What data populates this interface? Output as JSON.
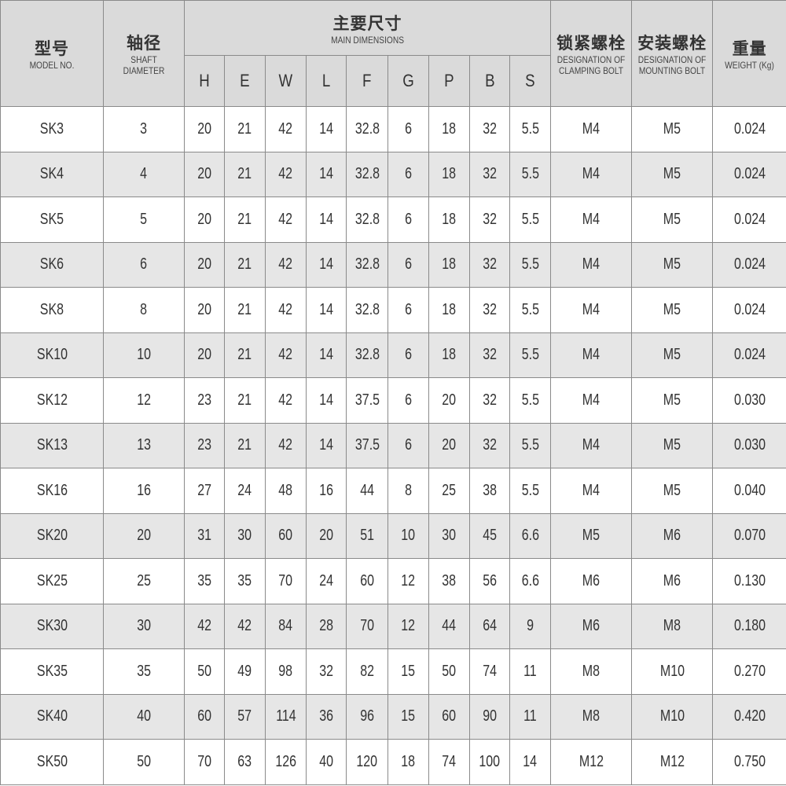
{
  "header": {
    "model": {
      "zh": "型号",
      "en": "MODEL NO."
    },
    "shaft": {
      "zh": "轴径",
      "en": "SHAFT DIAMETER"
    },
    "main": {
      "zh": "主要尺寸",
      "en": "MAIN DIMENSIONS"
    },
    "dims": [
      "H",
      "E",
      "W",
      "L",
      "F",
      "G",
      "P",
      "B",
      "S"
    ],
    "clamping": {
      "zh": "锁紧螺栓",
      "en": "DESIGNATION OF CLAMPING BOLT"
    },
    "mounting": {
      "zh": "安装螺栓",
      "en": "DESIGNATION OF MOUNTING BOLT"
    },
    "weight": {
      "zh": "重量",
      "en": "WEIGHT (Kg)"
    }
  },
  "rows": [
    [
      "SK3",
      "3",
      "20",
      "21",
      "42",
      "14",
      "32.8",
      "6",
      "18",
      "32",
      "5.5",
      "M4",
      "M5",
      "0.024"
    ],
    [
      "SK4",
      "4",
      "20",
      "21",
      "42",
      "14",
      "32.8",
      "6",
      "18",
      "32",
      "5.5",
      "M4",
      "M5",
      "0.024"
    ],
    [
      "SK5",
      "5",
      "20",
      "21",
      "42",
      "14",
      "32.8",
      "6",
      "18",
      "32",
      "5.5",
      "M4",
      "M5",
      "0.024"
    ],
    [
      "SK6",
      "6",
      "20",
      "21",
      "42",
      "14",
      "32.8",
      "6",
      "18",
      "32",
      "5.5",
      "M4",
      "M5",
      "0.024"
    ],
    [
      "SK8",
      "8",
      "20",
      "21",
      "42",
      "14",
      "32.8",
      "6",
      "18",
      "32",
      "5.5",
      "M4",
      "M5",
      "0.024"
    ],
    [
      "SK10",
      "10",
      "20",
      "21",
      "42",
      "14",
      "32.8",
      "6",
      "18",
      "32",
      "5.5",
      "M4",
      "M5",
      "0.024"
    ],
    [
      "SK12",
      "12",
      "23",
      "21",
      "42",
      "14",
      "37.5",
      "6",
      "20",
      "32",
      "5.5",
      "M4",
      "M5",
      "0.030"
    ],
    [
      "SK13",
      "13",
      "23",
      "21",
      "42",
      "14",
      "37.5",
      "6",
      "20",
      "32",
      "5.5",
      "M4",
      "M5",
      "0.030"
    ],
    [
      "SK16",
      "16",
      "27",
      "24",
      "48",
      "16",
      "44",
      "8",
      "25",
      "38",
      "5.5",
      "M4",
      "M5",
      "0.040"
    ],
    [
      "SK20",
      "20",
      "31",
      "30",
      "60",
      "20",
      "51",
      "10",
      "30",
      "45",
      "6.6",
      "M5",
      "M6",
      "0.070"
    ],
    [
      "SK25",
      "25",
      "35",
      "35",
      "70",
      "24",
      "60",
      "12",
      "38",
      "56",
      "6.6",
      "M6",
      "M6",
      "0.130"
    ],
    [
      "SK30",
      "30",
      "42",
      "42",
      "84",
      "28",
      "70",
      "12",
      "44",
      "64",
      "9",
      "M6",
      "M8",
      "0.180"
    ],
    [
      "SK35",
      "35",
      "50",
      "49",
      "98",
      "32",
      "82",
      "15",
      "50",
      "74",
      "11",
      "M8",
      "M10",
      "0.270"
    ],
    [
      "SK40",
      "40",
      "60",
      "57",
      "114",
      "36",
      "96",
      "15",
      "60",
      "90",
      "11",
      "M8",
      "M10",
      "0.420"
    ],
    [
      "SK50",
      "50",
      "70",
      "63",
      "126",
      "40",
      "120",
      "18",
      "74",
      "100",
      "14",
      "M12",
      "M12",
      "0.750"
    ]
  ]
}
